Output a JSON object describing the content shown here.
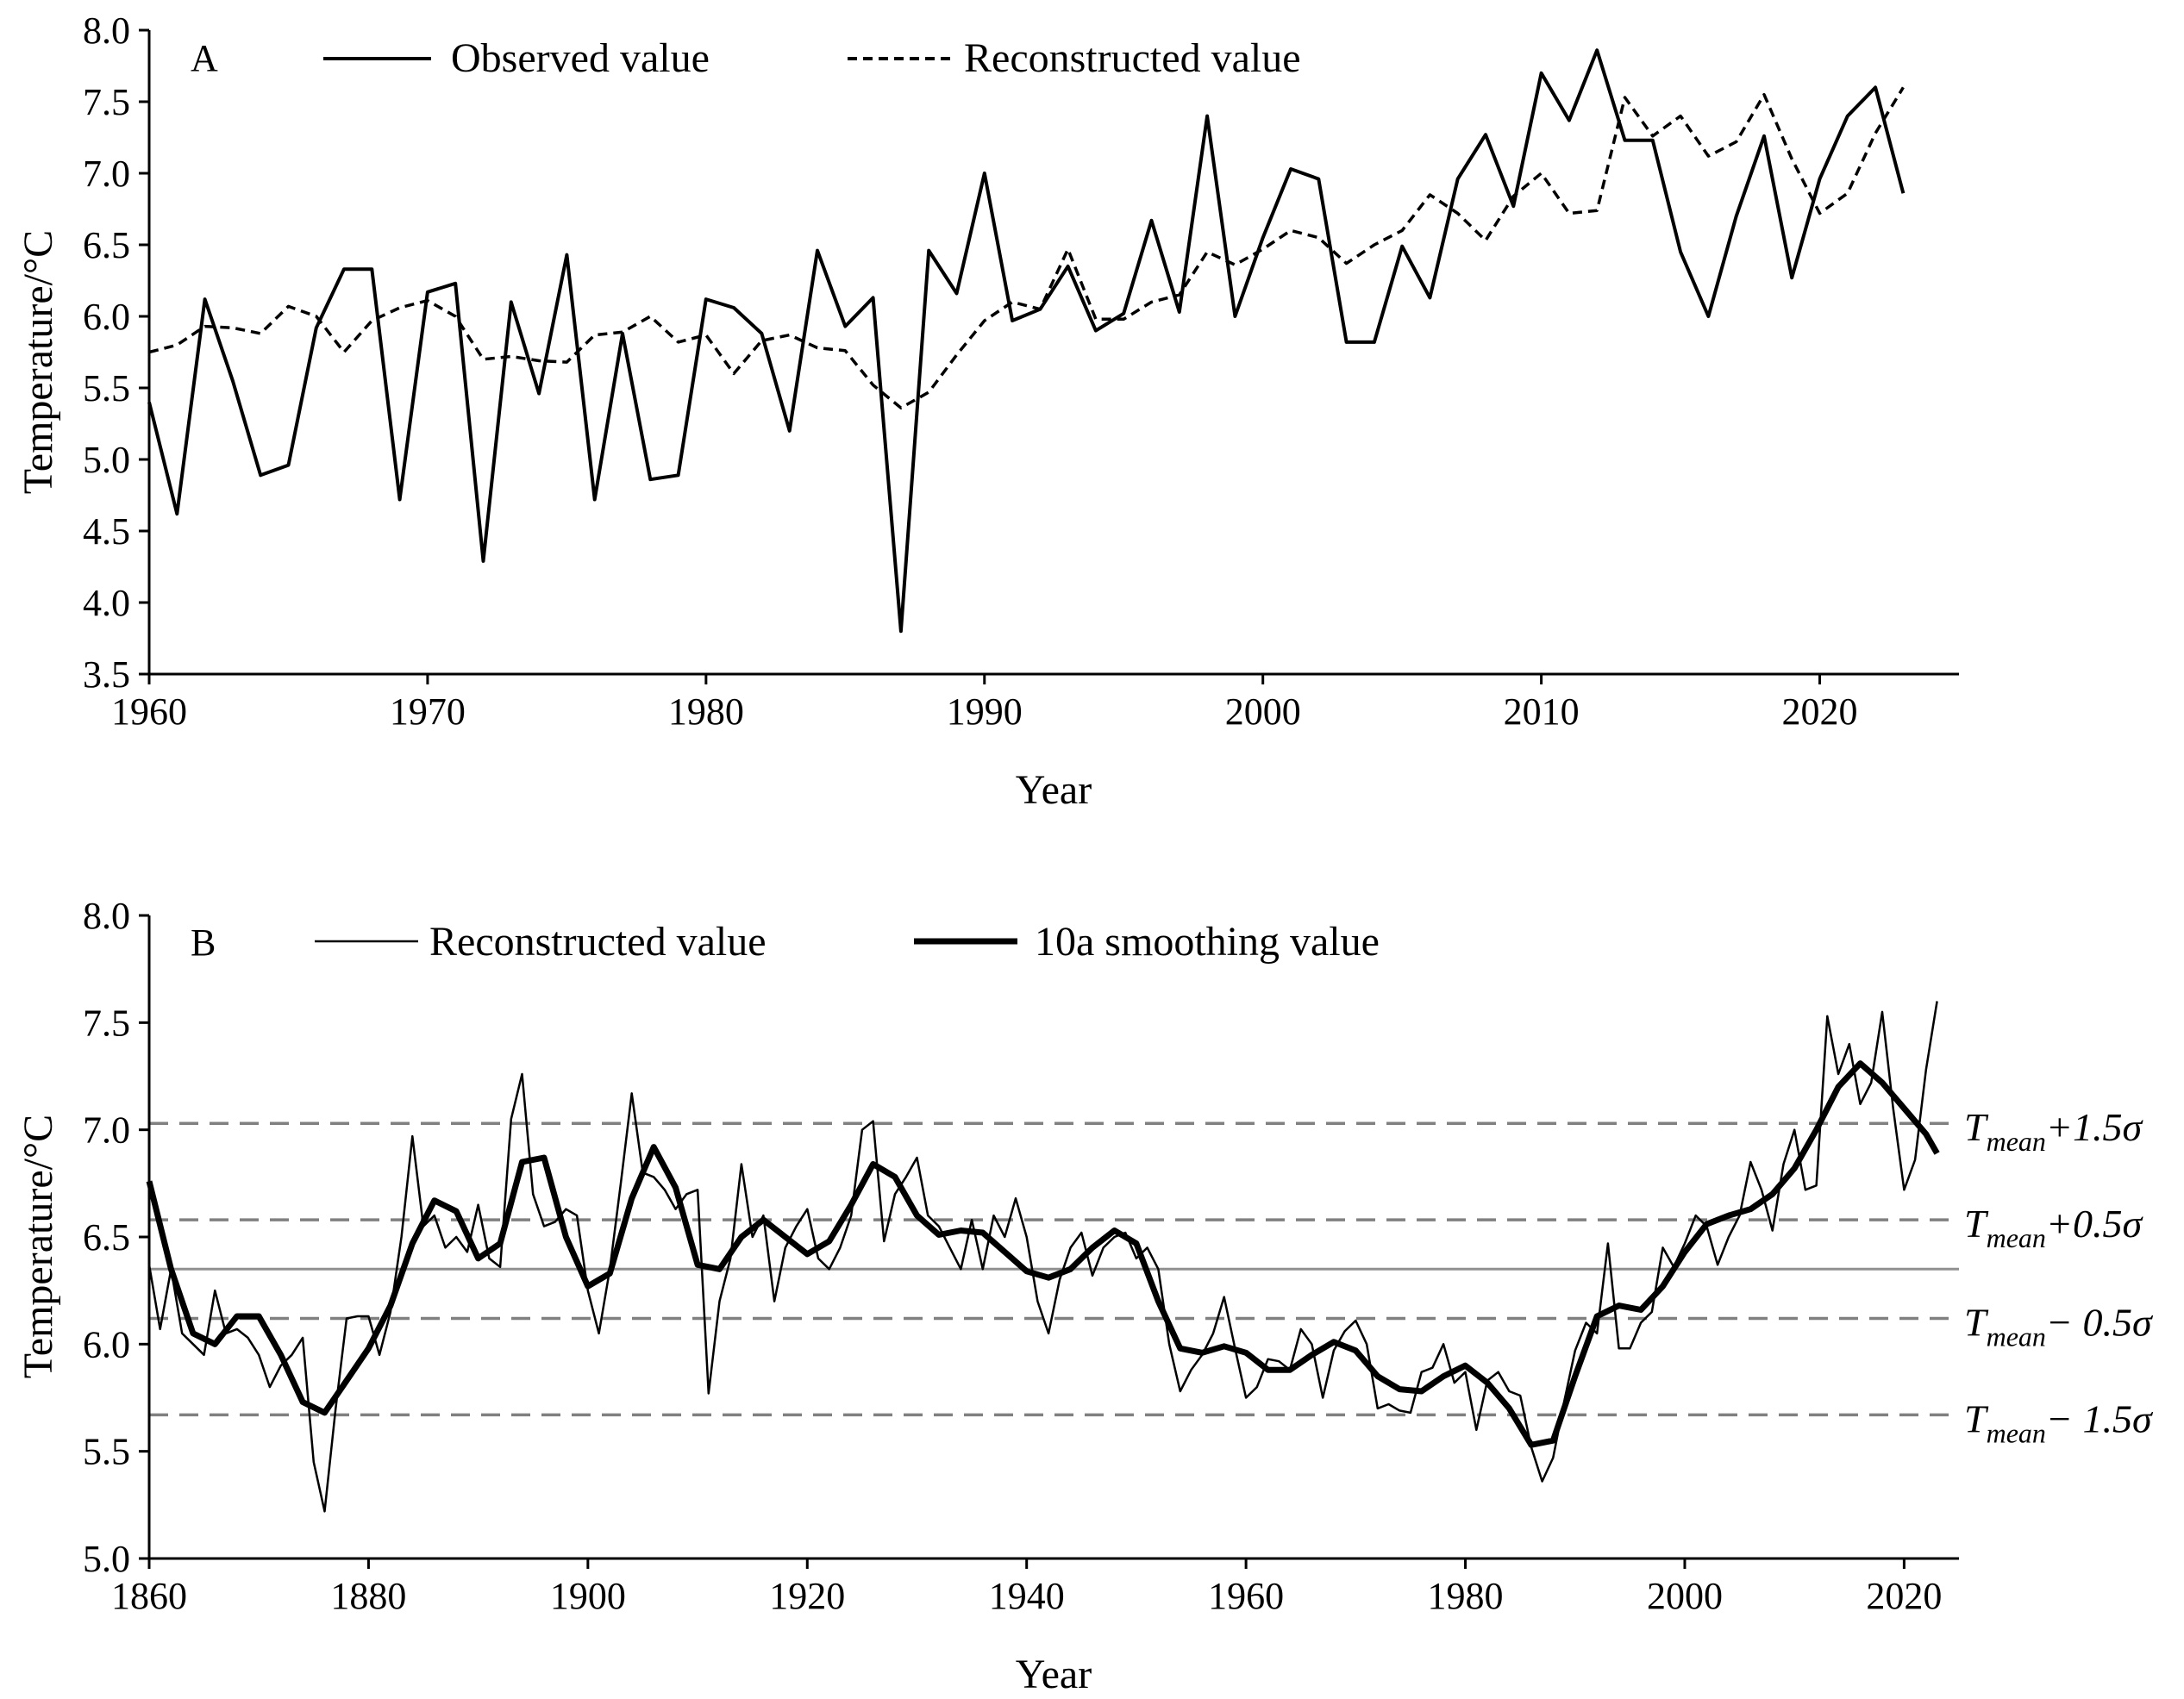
{
  "chart_data": [
    {
      "type": "line",
      "panel_label": "A",
      "xlabel": "Year",
      "ylabel": "Temperature/°C",
      "xlim": [
        1960,
        2025
      ],
      "ylim": [
        3.5,
        8.0
      ],
      "xticks": [
        1960,
        1970,
        1980,
        1990,
        2000,
        2010,
        2020
      ],
      "yticks": [
        3.5,
        4.0,
        4.5,
        5.0,
        5.5,
        6.0,
        6.5,
        7.0,
        7.5,
        8.0
      ],
      "x": [
        1960,
        1961,
        1962,
        1963,
        1964,
        1965,
        1966,
        1967,
        1968,
        1969,
        1970,
        1971,
        1972,
        1973,
        1974,
        1975,
        1976,
        1977,
        1978,
        1979,
        1980,
        1981,
        1982,
        1983,
        1984,
        1985,
        1986,
        1987,
        1988,
        1989,
        1990,
        1991,
        1992,
        1993,
        1994,
        1995,
        1996,
        1997,
        1998,
        1999,
        2000,
        2001,
        2002,
        2003,
        2004,
        2005,
        2006,
        2007,
        2008,
        2009,
        2010,
        2011,
        2012,
        2013,
        2014,
        2015,
        2016,
        2017,
        2018,
        2019,
        2020,
        2021,
        2022,
        2023
      ],
      "series": [
        {
          "name": "Observed value",
          "style": "solid",
          "values": [
            5.4,
            4.62,
            6.12,
            5.55,
            4.89,
            4.96,
            5.92,
            6.33,
            6.33,
            4.72,
            6.17,
            6.23,
            4.29,
            6.1,
            5.46,
            6.43,
            4.72,
            5.88,
            4.86,
            4.89,
            6.12,
            6.06,
            5.88,
            5.2,
            6.46,
            5.93,
            6.13,
            3.8,
            6.46,
            6.16,
            7.0,
            5.97,
            6.05,
            6.35,
            5.9,
            6.02,
            6.67,
            6.03,
            7.4,
            6.0,
            6.55,
            7.03,
            6.96,
            5.82,
            5.82,
            6.49,
            6.13,
            6.96,
            7.27,
            6.77,
            7.7,
            7.37,
            7.86,
            7.23,
            7.23,
            6.45,
            6.0,
            6.7,
            7.26,
            6.27,
            6.96,
            7.4,
            7.6,
            6.86
          ]
        },
        {
          "name": "Reconstructed value",
          "style": "dashed",
          "values": [
            5.75,
            5.8,
            5.93,
            5.92,
            5.88,
            6.07,
            6.0,
            5.75,
            5.97,
            6.06,
            6.11,
            6.0,
            5.7,
            5.72,
            5.69,
            5.68,
            5.87,
            5.89,
            6.0,
            5.82,
            5.87,
            5.6,
            5.83,
            5.87,
            5.78,
            5.76,
            5.52,
            5.36,
            5.47,
            5.73,
            5.97,
            6.1,
            6.05,
            6.47,
            5.98,
            5.98,
            6.1,
            6.15,
            6.45,
            6.36,
            6.47,
            6.6,
            6.55,
            6.37,
            6.5,
            6.6,
            6.85,
            6.72,
            6.53,
            6.84,
            7.0,
            6.72,
            6.74,
            7.53,
            7.26,
            7.4,
            7.12,
            7.22,
            7.55,
            7.1,
            6.72,
            6.86,
            7.28,
            7.6
          ]
        }
      ]
    },
    {
      "type": "line",
      "panel_label": "B",
      "xlabel": "Year",
      "ylabel": "Temperature/°C",
      "xlim": [
        1860,
        2025
      ],
      "ylim": [
        5.0,
        8.0
      ],
      "xticks": [
        1860,
        1880,
        1900,
        1920,
        1940,
        1960,
        1980,
        2000,
        2020
      ],
      "yticks": [
        5.0,
        5.5,
        6.0,
        6.5,
        7.0,
        7.5,
        8.0
      ],
      "series": [
        {
          "name": "Reconstructed value",
          "style": "thin",
          "x": [
            1860,
            1861,
            1862,
            1863,
            1864,
            1865,
            1866,
            1867,
            1868,
            1869,
            1870,
            1871,
            1872,
            1873,
            1874,
            1875,
            1876,
            1877,
            1878,
            1879,
            1880,
            1881,
            1882,
            1883,
            1884,
            1885,
            1886,
            1887,
            1888,
            1889,
            1890,
            1891,
            1892,
            1893,
            1894,
            1895,
            1896,
            1897,
            1898,
            1899,
            1900,
            1901,
            1902,
            1903,
            1904,
            1905,
            1906,
            1907,
            1908,
            1909,
            1910,
            1911,
            1912,
            1913,
            1914,
            1915,
            1916,
            1917,
            1918,
            1919,
            1920,
            1921,
            1922,
            1923,
            1924,
            1925,
            1926,
            1927,
            1928,
            1929,
            1930,
            1931,
            1932,
            1933,
            1934,
            1935,
            1936,
            1937,
            1938,
            1939,
            1940,
            1941,
            1942,
            1943,
            1944,
            1945,
            1946,
            1947,
            1948,
            1949,
            1950,
            1951,
            1952,
            1953,
            1954,
            1955,
            1956,
            1957,
            1958,
            1959,
            1960,
            1961,
            1962,
            1963,
            1964,
            1965,
            1966,
            1967,
            1968,
            1969,
            1970,
            1971,
            1972,
            1973,
            1974,
            1975,
            1976,
            1977,
            1978,
            1979,
            1980,
            1981,
            1982,
            1983,
            1984,
            1985,
            1986,
            1987,
            1988,
            1989,
            1990,
            1991,
            1992,
            1993,
            1994,
            1995,
            1996,
            1997,
            1998,
            1999,
            2000,
            2001,
            2002,
            2003,
            2004,
            2005,
            2006,
            2007,
            2008,
            2009,
            2010,
            2011,
            2012,
            2013,
            2014,
            2015,
            2016,
            2017,
            2018,
            2019,
            2020,
            2021,
            2022,
            2023
          ],
          "values": [
            6.37,
            6.07,
            6.35,
            6.05,
            6.0,
            5.95,
            6.25,
            6.05,
            6.07,
            6.03,
            5.95,
            5.8,
            5.9,
            5.95,
            6.03,
            5.45,
            5.22,
            5.7,
            6.12,
            6.13,
            6.13,
            5.95,
            6.15,
            6.5,
            6.97,
            6.55,
            6.6,
            6.45,
            6.5,
            6.43,
            6.65,
            6.4,
            6.36,
            7.05,
            7.26,
            6.7,
            6.55,
            6.57,
            6.63,
            6.6,
            6.25,
            6.05,
            6.35,
            6.75,
            7.17,
            6.8,
            6.78,
            6.72,
            6.63,
            6.7,
            6.72,
            5.77,
            6.2,
            6.4,
            6.84,
            6.5,
            6.6,
            6.2,
            6.45,
            6.55,
            6.63,
            6.4,
            6.35,
            6.45,
            6.6,
            7.0,
            7.04,
            6.48,
            6.7,
            6.78,
            6.87,
            6.6,
            6.55,
            6.45,
            6.35,
            6.58,
            6.35,
            6.6,
            6.5,
            6.68,
            6.5,
            6.2,
            6.05,
            6.3,
            6.45,
            6.52,
            6.32,
            6.45,
            6.5,
            6.52,
            6.4,
            6.45,
            6.35,
            6.0,
            5.78,
            5.88,
            5.95,
            6.05,
            6.22,
            5.98,
            5.75,
            5.8,
            5.93,
            5.92,
            5.88,
            6.07,
            6.0,
            5.75,
            5.97,
            6.06,
            6.11,
            6.0,
            5.7,
            5.72,
            5.69,
            5.68,
            5.87,
            5.89,
            6.0,
            5.82,
            5.87,
            5.6,
            5.83,
            5.87,
            5.78,
            5.76,
            5.52,
            5.36,
            5.47,
            5.73,
            5.97,
            6.1,
            6.05,
            6.47,
            5.98,
            5.98,
            6.1,
            6.15,
            6.45,
            6.36,
            6.47,
            6.6,
            6.55,
            6.37,
            6.5,
            6.6,
            6.85,
            6.72,
            6.53,
            6.84,
            7.0,
            6.72,
            6.74,
            7.53,
            7.26,
            7.4,
            7.12,
            7.22,
            7.55,
            7.1,
            6.72,
            6.86,
            7.28,
            7.6
          ]
        },
        {
          "name": "10a smoothing value",
          "style": "thick",
          "x": [
            1860,
            1862,
            1864,
            1866,
            1868,
            1870,
            1872,
            1874,
            1876,
            1878,
            1880,
            1882,
            1884,
            1886,
            1888,
            1890,
            1892,
            1894,
            1896,
            1898,
            1900,
            1902,
            1904,
            1906,
            1908,
            1910,
            1912,
            1914,
            1916,
            1918,
            1920,
            1922,
            1924,
            1926,
            1928,
            1930,
            1932,
            1934,
            1936,
            1938,
            1940,
            1942,
            1944,
            1946,
            1948,
            1950,
            1952,
            1954,
            1956,
            1958,
            1960,
            1962,
            1964,
            1966,
            1968,
            1970,
            1972,
            1974,
            1976,
            1978,
            1980,
            1982,
            1984,
            1986,
            1988,
            1990,
            1992,
            1994,
            1996,
            1998,
            2000,
            2002,
            2004,
            2006,
            2008,
            2010,
            2012,
            2014,
            2016,
            2018,
            2020,
            2022,
            2023
          ],
          "values": [
            6.76,
            6.35,
            6.05,
            6.0,
            6.13,
            6.13,
            5.95,
            5.73,
            5.68,
            5.83,
            5.98,
            6.18,
            6.47,
            6.67,
            6.62,
            6.4,
            6.47,
            6.85,
            6.87,
            6.5,
            6.27,
            6.33,
            6.68,
            6.92,
            6.73,
            6.37,
            6.35,
            6.5,
            6.58,
            6.5,
            6.42,
            6.48,
            6.65,
            6.84,
            6.78,
            6.6,
            6.51,
            6.53,
            6.52,
            6.43,
            6.34,
            6.31,
            6.35,
            6.45,
            6.53,
            6.47,
            6.2,
            5.98,
            5.96,
            5.99,
            5.96,
            5.88,
            5.88,
            5.95,
            6.01,
            5.97,
            5.85,
            5.79,
            5.78,
            5.85,
            5.9,
            5.82,
            5.7,
            5.53,
            5.55,
            5.85,
            6.13,
            6.18,
            6.16,
            6.27,
            6.43,
            6.56,
            6.6,
            6.63,
            6.7,
            6.82,
            7.0,
            7.2,
            7.31,
            7.22,
            7.1,
            6.98,
            6.89
          ]
        }
      ],
      "reference_lines": [
        {
          "label_base": "T",
          "label_sub": "mean",
          "label_suffix": "+1.5σ",
          "value": 7.03,
          "style": "dashed"
        },
        {
          "label_base": "T",
          "label_sub": "mean",
          "label_suffix": "+0.5σ",
          "value": 6.58,
          "style": "dashed"
        },
        {
          "label_base": "",
          "label_sub": "",
          "label_suffix": "",
          "value": 6.35,
          "style": "solid-gray"
        },
        {
          "label_base": "T",
          "label_sub": "mean",
          "label_suffix": "− 0.5σ",
          "value": 6.12,
          "style": "dashed"
        },
        {
          "label_base": "T",
          "label_sub": "mean",
          "label_suffix": "− 1.5σ",
          "value": 5.67,
          "style": "dashed"
        }
      ]
    }
  ]
}
